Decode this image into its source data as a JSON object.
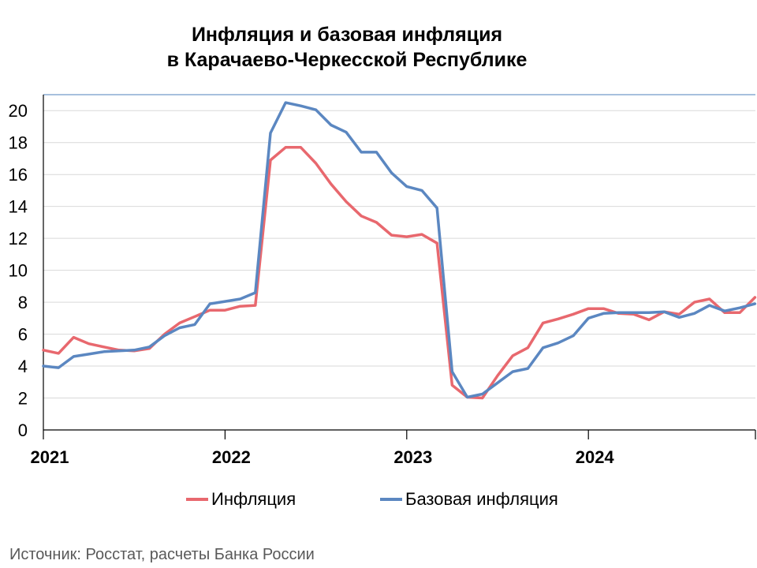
{
  "title_line1": "Инфляция и базовая инфляция",
  "title_line2": "в Карачаево-Черкесской Республике",
  "source": "Источник: Росстат, расчеты Банка России",
  "colors": {
    "inflation": "#E8686E",
    "core": "#5B87C1",
    "grid": "#D9D9D9",
    "axis": "#000000"
  },
  "chart_data": {
    "type": "line",
    "xlabel": "",
    "ylabel": "",
    "ylim": [
      0,
      21
    ],
    "yticks": [
      0,
      2,
      4,
      6,
      8,
      10,
      12,
      14,
      16,
      18,
      20
    ],
    "x_tick_labels": [
      "2021",
      "2022",
      "2023",
      "2024"
    ],
    "grid": true,
    "legend_position": "bottom",
    "x_start": "2021-01",
    "series": [
      {
        "name": "Инфляция",
        "values": [
          5.0,
          4.8,
          5.8,
          5.4,
          5.2,
          5.0,
          4.95,
          5.1,
          6.0,
          6.7,
          7.1,
          7.5,
          7.5,
          7.75,
          7.8,
          16.9,
          17.7,
          17.7,
          16.7,
          15.4,
          14.3,
          13.4,
          13.0,
          12.2,
          12.1,
          12.25,
          11.7,
          2.8,
          2.05,
          2.0,
          3.4,
          4.65,
          5.15,
          6.7,
          6.95,
          7.25,
          7.6,
          7.6,
          7.3,
          7.25,
          6.9,
          7.4,
          7.25,
          8.0,
          8.2,
          7.35,
          7.35,
          8.3
        ]
      },
      {
        "name": "Базовая инфляция",
        "values": [
          4.0,
          3.9,
          4.6,
          4.75,
          4.9,
          4.95,
          5.0,
          5.2,
          5.9,
          6.4,
          6.6,
          7.9,
          8.05,
          8.2,
          8.6,
          18.6,
          20.5,
          20.3,
          20.05,
          19.1,
          18.65,
          17.4,
          17.4,
          16.1,
          15.25,
          15.0,
          13.9,
          3.65,
          2.05,
          2.25,
          2.95,
          3.65,
          3.85,
          5.15,
          5.45,
          5.9,
          7.0,
          7.3,
          7.35,
          7.35,
          7.35,
          7.4,
          7.05,
          7.3,
          7.8,
          7.45,
          7.65,
          7.9
        ]
      }
    ]
  }
}
